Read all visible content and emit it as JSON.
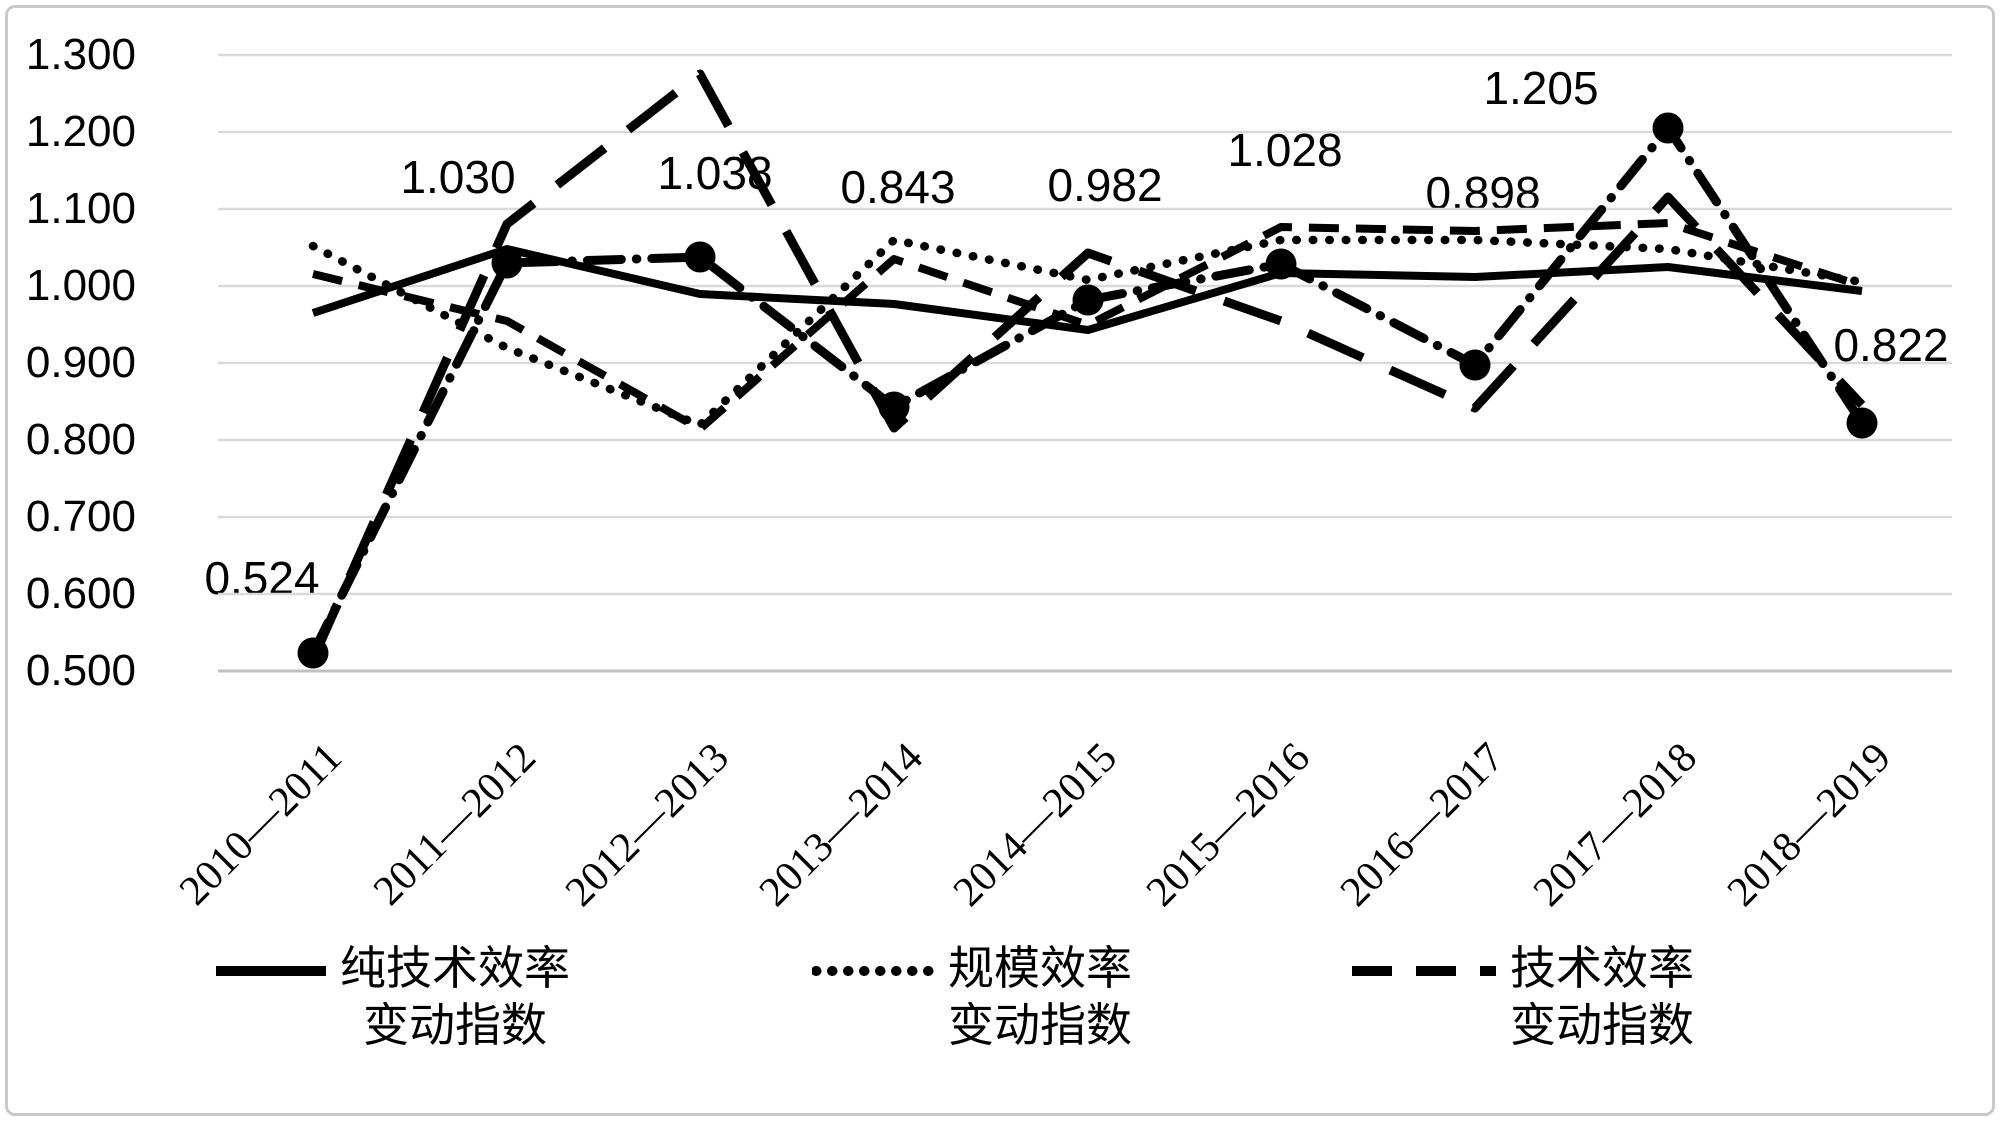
{
  "chart_data": {
    "type": "line",
    "title": "",
    "xlabel": "",
    "ylabel": "",
    "grid": true,
    "legend_position": "bottom",
    "ylim": [
      0.5,
      1.3
    ],
    "ytick_step": 0.1,
    "ytick_labels": [
      "1.300",
      "1.200",
      "1.100",
      "1.000",
      "0.900",
      "0.800",
      "0.700",
      "0.600",
      "0.500"
    ],
    "categories": [
      "2010—2011",
      "2011—2012",
      "2012—2013",
      "2013—2014",
      "2014—2015",
      "2015—2016",
      "2016—2017",
      "2017—2018",
      "2018—2019"
    ],
    "series": [
      {
        "id": "pure-technical-efficiency-change",
        "label": "纯技术效率变动指数",
        "line_style": "solid",
        "in_legend": true,
        "values": [
          0.965,
          1.048,
          0.99,
          0.976,
          0.943,
          1.017,
          1.012,
          1.025,
          0.993
        ]
      },
      {
        "id": "scale-efficiency-change",
        "label": "规模效率变动指数",
        "line_style": "dotted",
        "in_legend": true,
        "values": [
          1.052,
          0.92,
          0.82,
          1.06,
          1.008,
          1.06,
          1.06,
          1.048,
          1.005
        ]
      },
      {
        "id": "technical-efficiency-change",
        "label": "技术效率变动指数",
        "line_style": "dashed",
        "in_legend": true,
        "values": [
          1.015,
          0.955,
          0.814,
          1.035,
          0.95,
          1.077,
          1.072,
          1.082,
          1.0
        ]
      },
      {
        "id": "unlabeled-long-dash-series",
        "label": "",
        "line_style": "long-dash",
        "in_legend": false,
        "values": [
          0.515,
          1.08,
          1.275,
          0.815,
          1.043,
          0.955,
          0.842,
          1.115,
          0.845
        ]
      },
      {
        "id": "labeled-marker-series",
        "label": "",
        "line_style": "dash-dot",
        "marker": "circle",
        "in_legend": false,
        "values": [
          0.524,
          1.03,
          1.038,
          0.843,
          0.982,
          1.028,
          0.898,
          1.205,
          0.822
        ],
        "data_labels": [
          "0.524",
          "1.030",
          "1.038",
          "0.843",
          "0.982",
          "1.028",
          "0.898",
          "1.205",
          "0.822"
        ]
      }
    ]
  },
  "legend": {
    "items": [
      {
        "style": "solid",
        "lines": [
          "纯技术效率",
          "变动指数"
        ]
      },
      {
        "style": "dotted",
        "lines": [
          "规模效率",
          "变动指数"
        ]
      },
      {
        "style": "dashed",
        "lines": [
          "技术效率",
          "变动指数"
        ]
      }
    ]
  },
  "colors": {
    "line": "#000000",
    "gridline": "#d9d9d9",
    "axisline": "#c0c0c0",
    "frame": "#c9c9c9",
    "background": "#ffffff"
  }
}
